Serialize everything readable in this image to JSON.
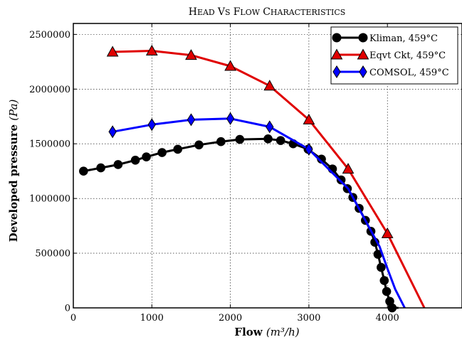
{
  "chart_data": {
    "type": "line",
    "title": "Head vs Flow Characteristics",
    "xlabel": "Flow",
    "xlabel_math": "(m³/h)",
    "ylabel": "Developed pressure",
    "ylabel_math": "(Pa)",
    "xlim": [
      0,
      4950
    ],
    "ylim": [
      0,
      2600000
    ],
    "xticks": [
      0,
      1000,
      2000,
      3000,
      4000
    ],
    "yticks": [
      0,
      500000,
      1000000,
      1500000,
      2000000,
      2500000
    ],
    "grid": true,
    "legend_position": "top-right",
    "series": [
      {
        "name": "Kliman, 459°C",
        "color": "#000000",
        "marker": "circle",
        "x": [
          130,
          350,
          570,
          790,
          930,
          1130,
          1330,
          1600,
          1880,
          2120,
          2480,
          2640,
          2800,
          2990,
          3160,
          3300,
          3410,
          3490,
          3560,
          3640,
          3720,
          3790,
          3840,
          3880,
          3920,
          3960,
          3990,
          4030,
          4060,
          4100,
          4140
        ],
        "y": [
          1250000,
          1280000,
          1310000,
          1350000,
          1380000,
          1420000,
          1450000,
          1490000,
          1520000,
          1540000,
          1545000,
          1530000,
          1500000,
          1450000,
          1360000,
          1270000,
          1170000,
          1090000,
          1010000,
          910000,
          800000,
          700000,
          600000,
          490000,
          370000,
          250000,
          150000,
          60000,
          0,
          0,
          0
        ]
      },
      {
        "name": "Eqvt Ckt, 459°C",
        "color": "#e00000",
        "marker": "triangle",
        "x": [
          500,
          1000,
          1500,
          2000,
          2500,
          3000,
          3500,
          4000,
          4470
        ],
        "y": [
          2340000,
          2350000,
          2310000,
          2210000,
          2030000,
          1720000,
          1270000,
          680000,
          0
        ],
        "marker_count": 8
      },
      {
        "name": "COMSOL, 459°C",
        "color": "#0000ff",
        "marker": "diamond",
        "x": [
          500,
          1000,
          1500,
          2000,
          2500,
          3000,
          3500,
          3900,
          4000,
          4100,
          4220
        ],
        "y": [
          1610000,
          1675000,
          1720000,
          1730000,
          1655000,
          1450000,
          1090000,
          560000,
          360000,
          170000,
          0
        ],
        "marker_count": 6
      }
    ]
  }
}
